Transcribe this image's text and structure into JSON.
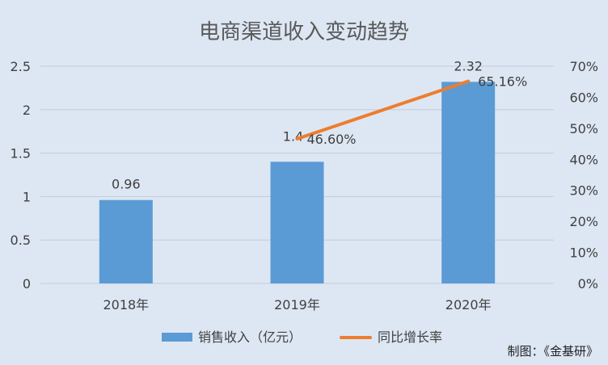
{
  "chart_data": {
    "type": "bar",
    "title": "电商渠道收入变动趋势",
    "categories": [
      "2018年",
      "2019年",
      "2020年"
    ],
    "series": [
      {
        "name": "销售收入（亿元）",
        "kind": "bar",
        "axis": "left",
        "color": "#5b9bd5",
        "values": [
          0.96,
          1.4,
          2.32
        ],
        "labels": [
          "0.96",
          "1.4",
          "2.32"
        ]
      },
      {
        "name": "同比增长率",
        "kind": "line",
        "axis": "right",
        "color": "#ed7d31",
        "values": [
          null,
          46.6,
          65.16
        ],
        "labels": [
          null,
          "46.60%",
          "65.16%"
        ]
      }
    ],
    "y_left": {
      "min": 0,
      "max": 2.5,
      "ticks": [
        "0",
        "0.5",
        "1",
        "1.5",
        "2",
        "2.5"
      ],
      "tick_values": [
        0,
        0.5,
        1,
        1.5,
        2,
        2.5
      ]
    },
    "y_right": {
      "min": 0,
      "max": 70,
      "ticks": [
        "0%",
        "10%",
        "20%",
        "30%",
        "40%",
        "50%",
        "60%",
        "70%"
      ],
      "tick_values": [
        0,
        10,
        20,
        30,
        40,
        50,
        60,
        70
      ]
    },
    "grid": true,
    "legend": "bottom",
    "source": "制图：《金基研》"
  },
  "colors": {
    "background": "#dde7f3",
    "grid": "#c3ccd8",
    "text": "#404040",
    "title": "#595959"
  }
}
